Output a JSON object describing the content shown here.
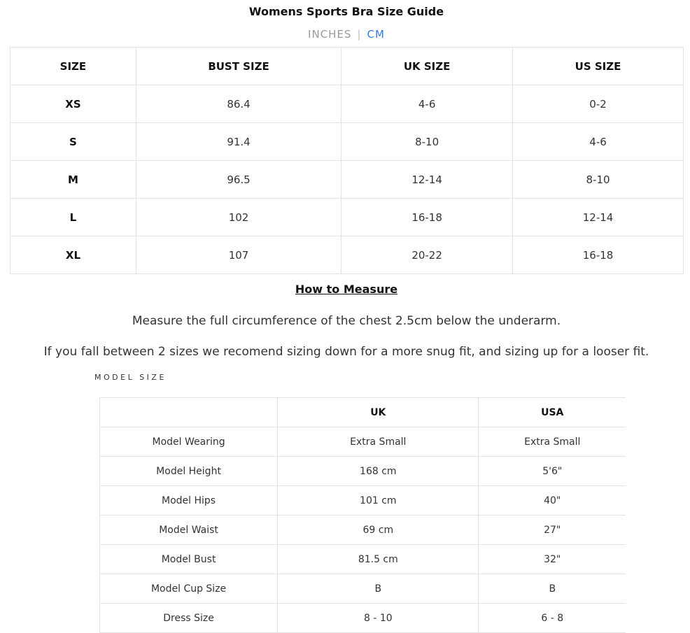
{
  "title": "Womens Sports Bra Size Guide",
  "units": {
    "inches": "INCHES",
    "separator": "|",
    "cm": "CM",
    "active": "CM",
    "active_color": "#3a7bd5"
  },
  "size_table": {
    "headers": [
      "SIZE",
      "BUST SIZE",
      "UK SIZE",
      "US SIZE"
    ],
    "rows": [
      [
        "XS",
        "86.4",
        "4-6",
        "0-2"
      ],
      [
        "S",
        "91.4",
        "8-10",
        "4-6"
      ],
      [
        "M",
        "96.5",
        "12-14",
        "8-10"
      ],
      [
        "L",
        "102",
        "16-18",
        "12-14"
      ],
      [
        "XL",
        "107",
        "20-22",
        "16-18"
      ]
    ]
  },
  "how_to": {
    "heading": "How to Measure",
    "line1": "Measure the full circumference of the chest 2.5cm below the underarm.",
    "line2": "If you fall between 2 sizes we recomend sizing down for a more snug fit, and sizing up for a looser fit."
  },
  "model": {
    "heading": "MODEL SIZE",
    "headers": [
      "",
      "UK",
      "USA"
    ],
    "rows": [
      [
        "Model Wearing",
        "Extra Small",
        "Extra Small"
      ],
      [
        "Model Height",
        "168 cm",
        "5'6\""
      ],
      [
        "Model Hips",
        "101 cm",
        "40\""
      ],
      [
        "Model Waist",
        "69 cm",
        "27\""
      ],
      [
        "Model Bust",
        "81.5 cm",
        "32\""
      ],
      [
        "Model Cup Size",
        "B",
        "B"
      ],
      [
        "Dress Size",
        "8 - 10",
        "6 - 8"
      ]
    ]
  }
}
